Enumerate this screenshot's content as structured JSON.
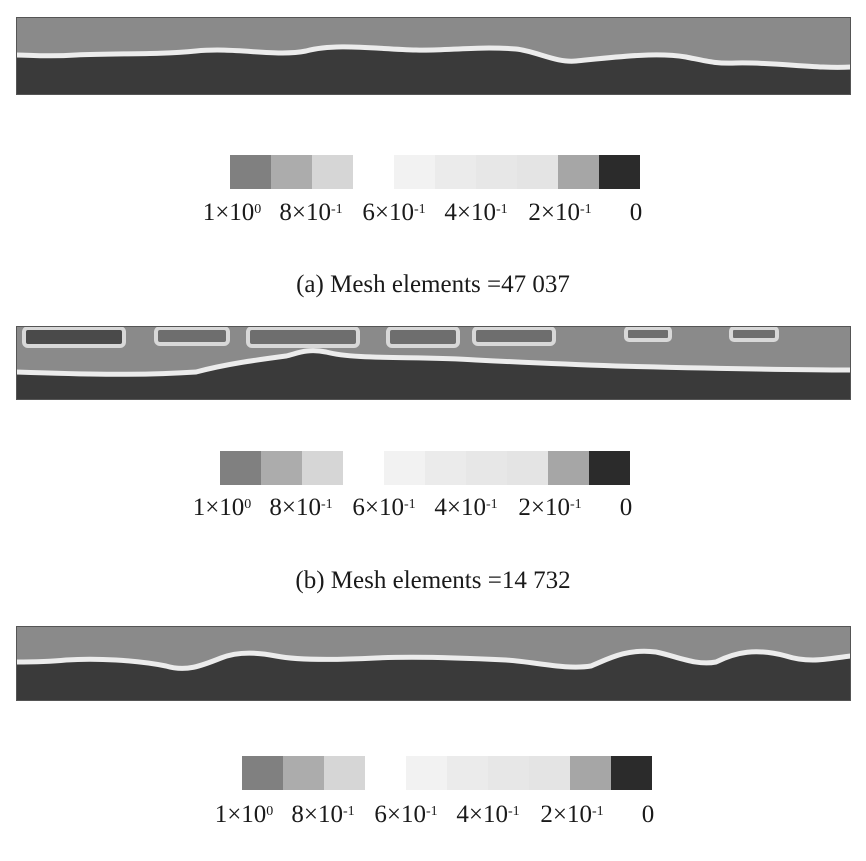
{
  "panels": [
    {
      "caption": "(a) Mesh elements =47 037",
      "legend_ticks": [
        {
          "mantissa": "1×10",
          "exp": "0"
        },
        {
          "mantissa": "8×10",
          "exp": "-1"
        },
        {
          "mantissa": "6×10",
          "exp": "-1"
        },
        {
          "mantissa": "4×10",
          "exp": "-1"
        },
        {
          "mantissa": "2×10",
          "exp": "-1"
        },
        {
          "mantissa": "0",
          "exp": ""
        }
      ]
    },
    {
      "caption": "(b) Mesh elements =14 732",
      "legend_ticks": [
        {
          "mantissa": "1×10",
          "exp": "0"
        },
        {
          "mantissa": "8×10",
          "exp": "-1"
        },
        {
          "mantissa": "6×10",
          "exp": "-1"
        },
        {
          "mantissa": "4×10",
          "exp": "-1"
        },
        {
          "mantissa": "2×10",
          "exp": "-1"
        },
        {
          "mantissa": "0",
          "exp": ""
        }
      ]
    },
    {
      "caption": "",
      "legend_ticks": [
        {
          "mantissa": "1×10",
          "exp": "0"
        },
        {
          "mantissa": "8×10",
          "exp": "-1"
        },
        {
          "mantissa": "6×10",
          "exp": "-1"
        },
        {
          "mantissa": "4×10",
          "exp": "-1"
        },
        {
          "mantissa": "2×10",
          "exp": "-1"
        },
        {
          "mantissa": "0",
          "exp": ""
        }
      ]
    }
  ],
  "colorbar_colors": [
    "#808080",
    "#acacac",
    "#d6d6d6",
    "#ffffff",
    "#f2f2f2",
    "#ebebeb",
    "#e7e7e7",
    "#e4e4e4",
    "#a6a6a6",
    "#2b2b2b"
  ],
  "field_colors": {
    "upper": "#8a8a8a",
    "lower": "#3a3a3a",
    "interface": "#ececec",
    "border": "#555555"
  }
}
